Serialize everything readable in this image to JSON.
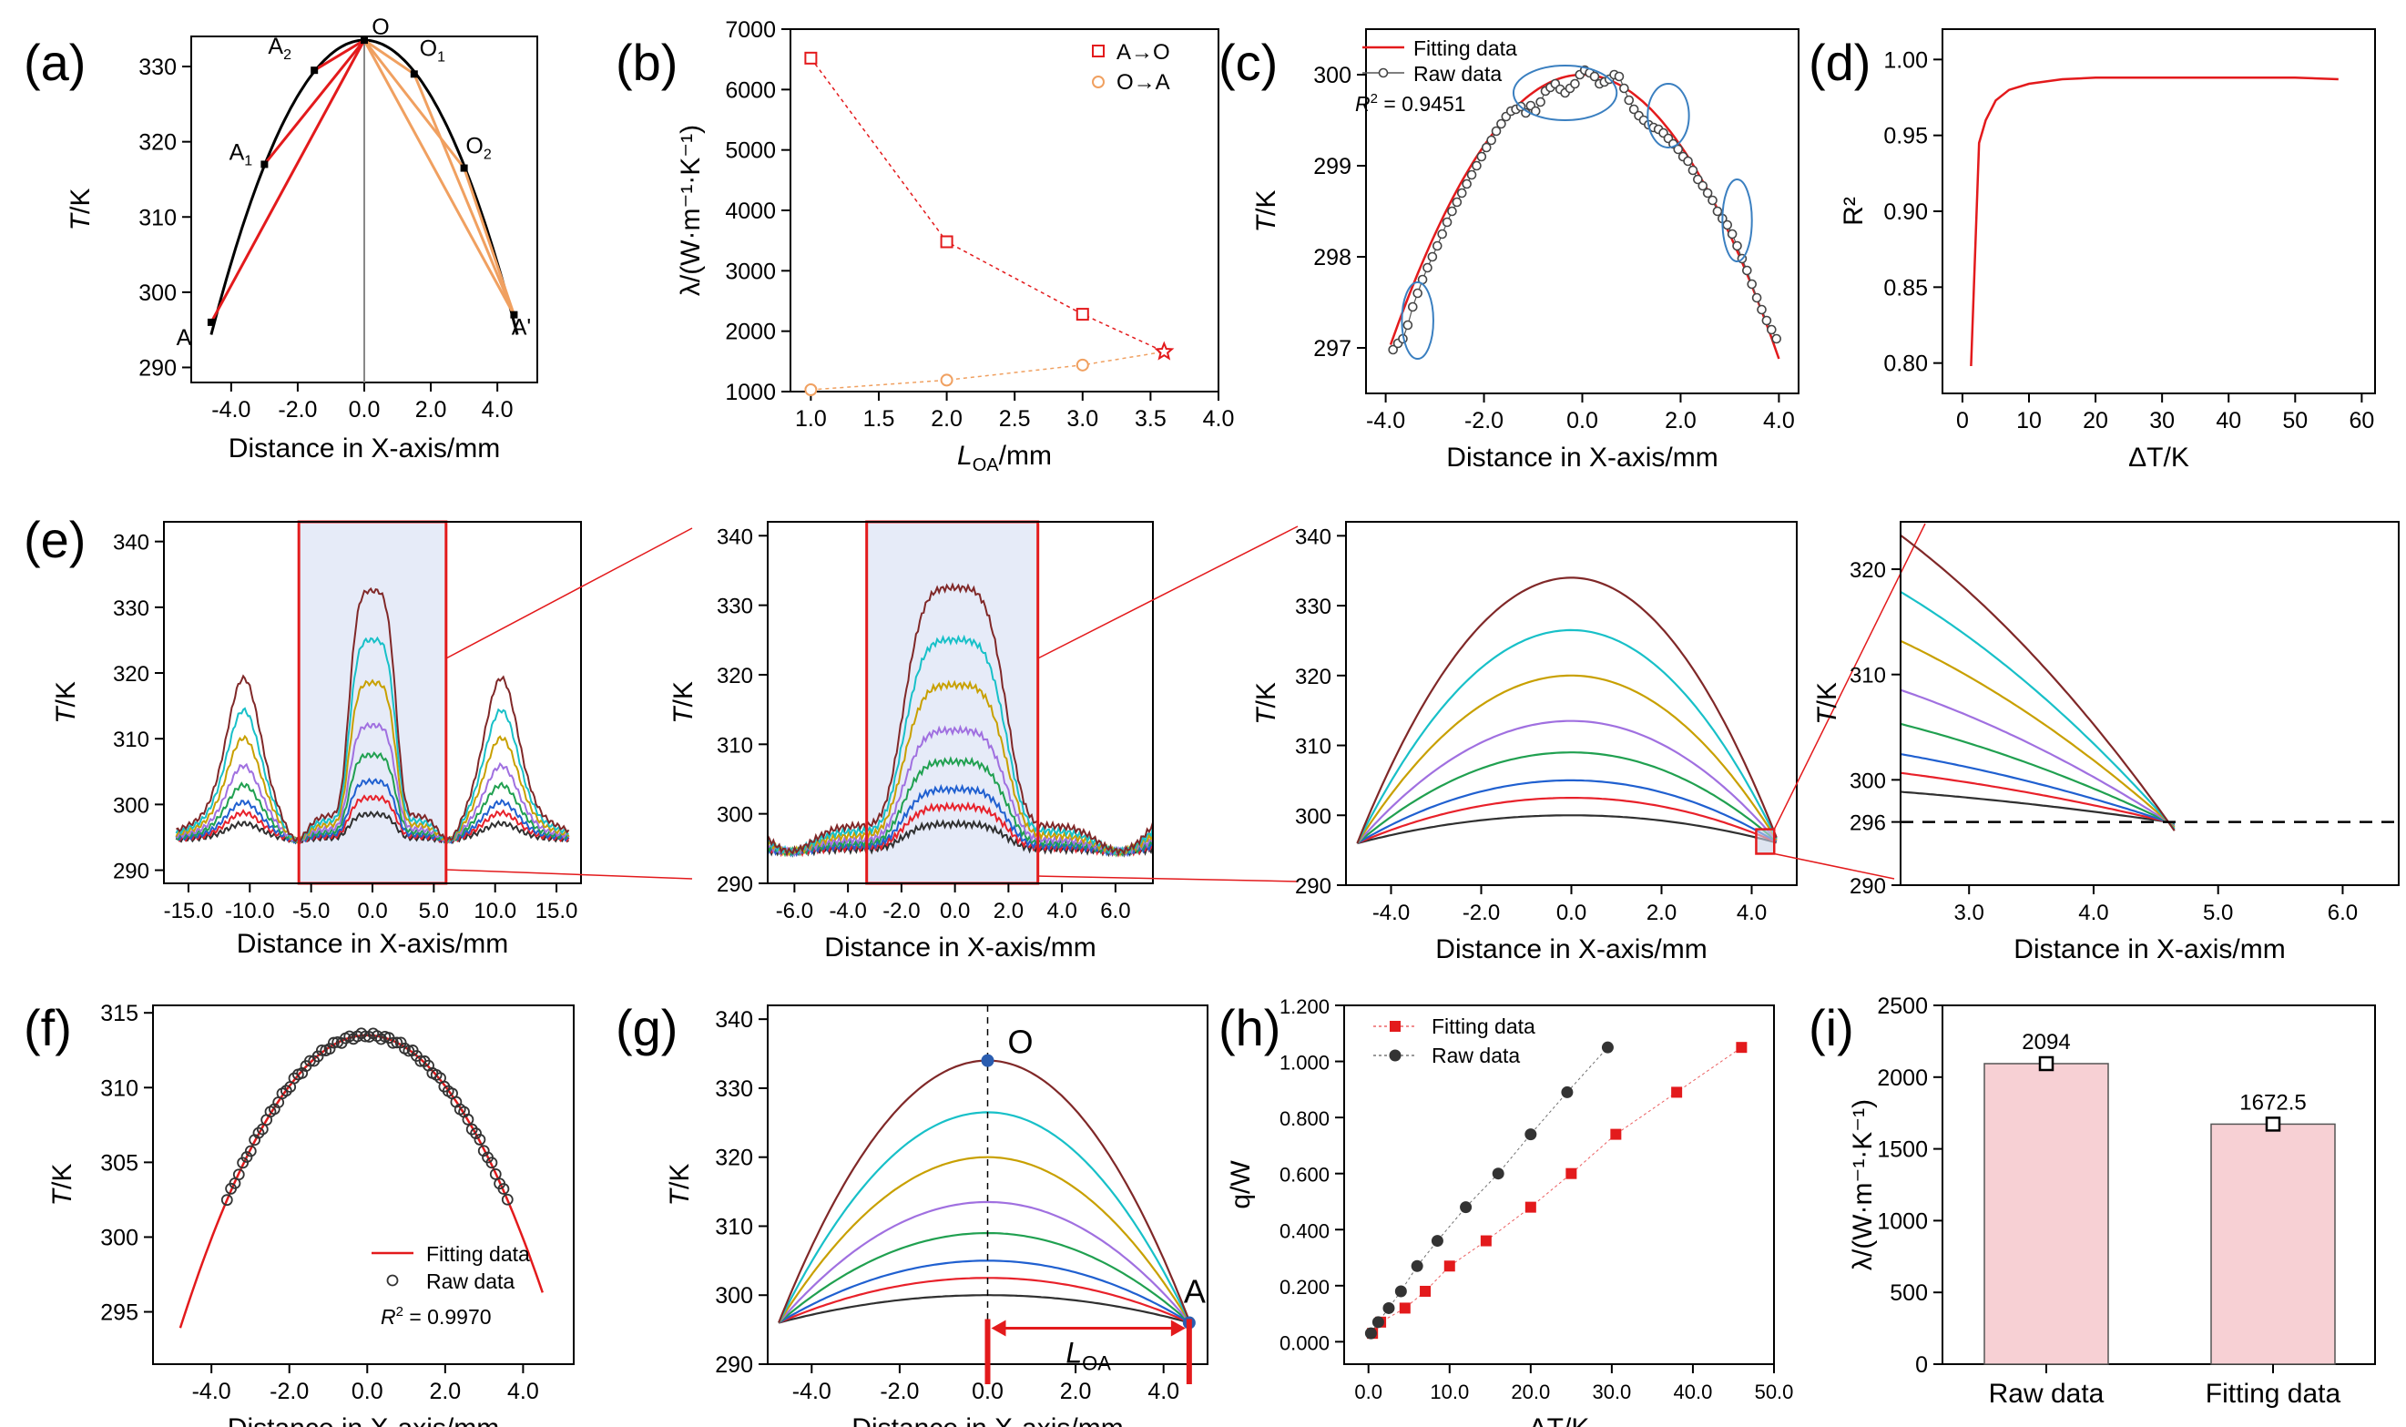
{
  "figure": {
    "colors": {
      "red": "#e31a1c",
      "orange": "#f0a060",
      "black": "#000000",
      "gray": "#888888",
      "palette": [
        "#303030",
        "#e8212a",
        "#2060d0",
        "#20a050",
        "#a070e0",
        "#c8a000",
        "#18c0c8",
        "#802828"
      ],
      "panel_fill": "#e6ebf8",
      "bar_fill": "#f7d0d4",
      "point_blue": "#2a5db0"
    },
    "panel_letters": {
      "a": "(a)",
      "b": "(b)",
      "c": "(c)",
      "d": "(d)",
      "e": "(e)",
      "f": "(f)",
      "g": "(g)",
      "h": "(h)",
      "i": "(i)"
    }
  },
  "chart_data": [
    {
      "id": "a",
      "type": "line",
      "title": "",
      "xlabel": "Distance in X-axis/mm",
      "ylabel": "T/K",
      "xlim": [
        -5.2,
        5.2
      ],
      "ylim": [
        288,
        334
      ],
      "x_ticks": [
        "-4.0",
        "-2.0",
        "0.0",
        "2.0",
        "4.0"
      ],
      "x_tick_values": [
        -4,
        -2,
        0,
        2,
        4
      ],
      "y_ticks": [
        "290",
        "300",
        "310",
        "320",
        "330"
      ],
      "y_tick_values": [
        290,
        300,
        310,
        320,
        330
      ],
      "curve": {
        "peak_x": 0,
        "peak_y": 333.5,
        "k": 1.85,
        "x_from": -4.6,
        "x_to": 4.6
      },
      "points": [
        {
          "label": "O",
          "x": 0.0,
          "y": 333.5
        },
        {
          "label": "A",
          "x": -4.6,
          "y": 296.0
        },
        {
          "label": "A1",
          "x": -3.0,
          "y": 317.0
        },
        {
          "label": "A2",
          "x": -1.5,
          "y": 329.5
        },
        {
          "label": "O1",
          "x": 1.5,
          "y": 329.0
        },
        {
          "label": "O2",
          "x": 3.0,
          "y": 316.5
        },
        {
          "label": "A'",
          "x": 4.5,
          "y": 297.0
        }
      ],
      "annotations": [
        {
          "text": "O",
          "sub": ""
        },
        {
          "text": "A",
          "sub": ""
        },
        {
          "text": "A",
          "sub": "1"
        },
        {
          "text": "A",
          "sub": "2"
        },
        {
          "text": "O",
          "sub": "1"
        },
        {
          "text": "O",
          "sub": "2"
        },
        {
          "text": "A'",
          "sub": ""
        }
      ]
    },
    {
      "id": "b",
      "type": "scatter",
      "xlabel": "L",
      "xlabel_sub": "OA",
      "xlabel_unit": "/mm",
      "ylabel": "λ/(W·m⁻¹·K⁻¹)",
      "xlim": [
        0.85,
        4.0
      ],
      "ylim": [
        1000,
        7000
      ],
      "x_ticks": [
        "1.0",
        "1.5",
        "2.0",
        "2.5",
        "3.0",
        "3.5",
        "4.0"
      ],
      "x_tick_values": [
        1.0,
        1.5,
        2.0,
        2.5,
        3.0,
        3.5,
        4.0
      ],
      "y_ticks": [
        "1000",
        "2000",
        "3000",
        "4000",
        "5000",
        "6000",
        "7000"
      ],
      "y_tick_values": [
        1000,
        2000,
        3000,
        4000,
        5000,
        6000,
        7000
      ],
      "series": [
        {
          "name": "A→O",
          "x": [
            1.0,
            2.0,
            3.0,
            3.6
          ],
          "y": [
            6520,
            3480,
            2280,
            1660
          ]
        },
        {
          "name": "O→A",
          "x": [
            1.0,
            2.0,
            3.0,
            3.6
          ],
          "y": [
            1030,
            1190,
            1440,
            1660
          ]
        }
      ],
      "intersection": {
        "x": 3.6,
        "y": 1660
      }
    },
    {
      "id": "c",
      "type": "scatter",
      "xlabel": "Distance in X-axis/mm",
      "ylabel": "T/K",
      "xlim": [
        -4.4,
        4.4
      ],
      "ylim": [
        296.5,
        300.5
      ],
      "x_ticks": [
        "-4.0",
        "-2.0",
        "0.0",
        "2.0",
        "4.0"
      ],
      "x_tick_values": [
        -4,
        -2,
        0,
        2,
        4
      ],
      "y_ticks": [
        "297",
        "298",
        "299",
        "300"
      ],
      "y_tick_values": [
        297,
        298,
        299,
        300
      ],
      "legend": [
        "Fitting data",
        "Raw data"
      ],
      "r2_label": "R",
      "r2_text": " = 0.9451",
      "fit": {
        "peak_y": 300.0,
        "k": 0.195,
        "x_from": -3.9,
        "x_to": 4.0
      },
      "raw": [
        [
          -3.85,
          296.98
        ],
        [
          -3.75,
          297.05
        ],
        [
          -3.65,
          297.1
        ],
        [
          -3.55,
          297.25
        ],
        [
          -3.45,
          297.45
        ],
        [
          -3.35,
          297.6
        ],
        [
          -3.25,
          297.75
        ],
        [
          -3.15,
          297.88
        ],
        [
          -3.05,
          298.0
        ],
        [
          -2.95,
          298.12
        ],
        [
          -2.85,
          298.25
        ],
        [
          -2.75,
          298.38
        ],
        [
          -2.65,
          298.5
        ],
        [
          -2.55,
          298.6
        ],
        [
          -2.45,
          298.7
        ],
        [
          -2.35,
          298.8
        ],
        [
          -2.25,
          298.9
        ],
        [
          -2.15,
          299.0
        ],
        [
          -2.05,
          299.1
        ],
        [
          -1.95,
          299.2
        ],
        [
          -1.85,
          299.28
        ],
        [
          -1.75,
          299.38
        ],
        [
          -1.65,
          299.46
        ],
        [
          -1.55,
          299.54
        ],
        [
          -1.45,
          299.6
        ],
        [
          -1.35,
          299.62
        ],
        [
          -1.25,
          299.65
        ],
        [
          -1.15,
          299.58
        ],
        [
          -1.05,
          299.66
        ],
        [
          -0.95,
          299.6
        ],
        [
          -0.85,
          299.7
        ],
        [
          -0.75,
          299.82
        ],
        [
          -0.65,
          299.86
        ],
        [
          -0.55,
          299.9
        ],
        [
          -0.45,
          299.84
        ],
        [
          -0.35,
          299.8
        ],
        [
          -0.25,
          299.85
        ],
        [
          -0.15,
          299.9
        ],
        [
          -0.05,
          300.0
        ],
        [
          0.05,
          300.05
        ],
        [
          0.15,
          300.02
        ],
        [
          0.25,
          299.98
        ],
        [
          0.35,
          299.9
        ],
        [
          0.45,
          299.92
        ],
        [
          0.55,
          299.95
        ],
        [
          0.65,
          300.0
        ],
        [
          0.75,
          299.98
        ],
        [
          0.85,
          299.85
        ],
        [
          0.95,
          299.72
        ],
        [
          1.05,
          299.62
        ],
        [
          1.15,
          299.55
        ],
        [
          1.25,
          299.5
        ],
        [
          1.35,
          299.45
        ],
        [
          1.45,
          299.42
        ],
        [
          1.55,
          299.4
        ],
        [
          1.65,
          299.36
        ],
        [
          1.75,
          299.3
        ],
        [
          1.85,
          299.24
        ],
        [
          1.95,
          299.18
        ],
        [
          2.05,
          299.1
        ],
        [
          2.15,
          299.05
        ],
        [
          2.25,
          298.95
        ],
        [
          2.35,
          298.85
        ],
        [
          2.45,
          298.78
        ],
        [
          2.55,
          298.7
        ],
        [
          2.65,
          298.62
        ],
        [
          2.75,
          298.5
        ],
        [
          2.85,
          298.42
        ],
        [
          2.95,
          298.35
        ],
        [
          3.05,
          298.25
        ],
        [
          3.15,
          298.12
        ],
        [
          3.25,
          297.98
        ],
        [
          3.35,
          297.85
        ],
        [
          3.45,
          297.7
        ],
        [
          3.55,
          297.55
        ],
        [
          3.65,
          297.42
        ],
        [
          3.75,
          297.3
        ],
        [
          3.85,
          297.2
        ],
        [
          3.95,
          297.1
        ]
      ],
      "ellipses": [
        {
          "cx": -3.35,
          "cy": 297.3,
          "rx": 0.32,
          "ry": 0.42
        },
        {
          "cx": -0.35,
          "cy": 299.8,
          "rx": 1.05,
          "ry": 0.3
        },
        {
          "cx": 1.75,
          "cy": 299.55,
          "rx": 0.42,
          "ry": 0.35
        },
        {
          "cx": 3.15,
          "cy": 298.4,
          "rx": 0.3,
          "ry": 0.45
        }
      ]
    },
    {
      "id": "d",
      "type": "line",
      "xlabel": "ΔT/K",
      "ylabel": "R²",
      "xlim": [
        -3,
        62
      ],
      "ylim": [
        0.78,
        1.02
      ],
      "x_ticks": [
        "0",
        "10",
        "20",
        "30",
        "40",
        "50",
        "60"
      ],
      "x_tick_values": [
        0,
        10,
        20,
        30,
        40,
        50,
        60
      ],
      "y_ticks": [
        "0.80",
        "0.85",
        "0.90",
        "0.95",
        "1.00"
      ],
      "y_tick_values": [
        0.8,
        0.85,
        0.9,
        0.95,
        1.0
      ],
      "x": [
        1.3,
        2.5,
        3.5,
        5.0,
        7.0,
        10.0,
        15.0,
        20.0,
        30.0,
        40.0,
        50.0,
        56.5
      ],
      "y": [
        0.798,
        0.945,
        0.96,
        0.973,
        0.98,
        0.984,
        0.987,
        0.988,
        0.988,
        0.988,
        0.988,
        0.987
      ]
    },
    {
      "id": "e1",
      "type": "line",
      "xlabel": "Distance in X-axis/mm",
      "ylabel": "T/K",
      "xlim": [
        -17,
        17
      ],
      "ylim": [
        288,
        343
      ],
      "x_ticks": [
        "-15.0",
        "-10.0",
        "-5.0",
        "0.0",
        "5.0",
        "10.0",
        "15.0"
      ],
      "x_tick_values": [
        -15,
        -10,
        -5,
        0,
        5,
        10,
        15
      ],
      "y_ticks": [
        "290",
        "300",
        "310",
        "320",
        "330",
        "340"
      ],
      "y_tick_values": [
        290,
        300,
        310,
        320,
        330,
        340
      ],
      "highlight": {
        "x_from": -6.0,
        "x_to": 6.0
      },
      "series_peaks": [
        300.0,
        302.5,
        305.0,
        309.0,
        313.5,
        320.0,
        326.5,
        334.0
      ]
    },
    {
      "id": "e2",
      "type": "line",
      "xlabel": "Distance in X-axis/mm",
      "ylabel": "T/K",
      "xlim": [
        -7,
        7.4
      ],
      "ylim": [
        290,
        342
      ],
      "x_ticks": [
        "-6.0",
        "-4.0",
        "-2.0",
        "0.0",
        "2.0",
        "4.0",
        "6.0"
      ],
      "x_tick_values": [
        -6,
        -4,
        -2,
        0,
        2,
        4,
        6
      ],
      "y_ticks": [
        "290",
        "300",
        "310",
        "320",
        "330",
        "340"
      ],
      "y_tick_values": [
        290,
        300,
        310,
        320,
        330,
        340
      ],
      "highlight": {
        "x_from": -3.3,
        "x_to": 3.1
      },
      "series_peaks": [
        300.0,
        302.5,
        305.0,
        309.0,
        313.5,
        320.0,
        326.5,
        334.0
      ]
    },
    {
      "id": "e3",
      "type": "line",
      "xlabel": "Distance in X-axis/mm",
      "ylabel": "T/K",
      "xlim": [
        -5.0,
        5.0
      ],
      "ylim": [
        290,
        342
      ],
      "x_ticks": [
        "-4.0",
        "-2.0",
        "0.0",
        "2.0",
        "4.0"
      ],
      "x_tick_values": [
        -4,
        -2,
        0,
        2,
        4
      ],
      "y_ticks": [
        "290",
        "300",
        "310",
        "320",
        "330",
        "340"
      ],
      "y_tick_values": [
        290,
        300,
        310,
        320,
        330,
        340
      ],
      "zoom_box": {
        "x_from": 4.1,
        "x_to": 4.5,
        "y_from": 294.5,
        "y_to": 298.0
      },
      "series_peaks": [
        300.0,
        302.5,
        305.0,
        309.0,
        313.5,
        320.0,
        326.5,
        334.0
      ]
    },
    {
      "id": "e4",
      "type": "line",
      "xlabel": "Distance in X-axis/mm",
      "ylabel": "T/K",
      "xlim": [
        2.45,
        6.45
      ],
      "ylim": [
        290,
        324.5
      ],
      "x_ticks": [
        "3.0",
        "4.0",
        "5.0",
        "6.0"
      ],
      "x_tick_values": [
        3,
        4,
        5,
        6
      ],
      "y_ticks": [
        "290",
        "296",
        "300",
        "310",
        "320"
      ],
      "y_tick_values": [
        290,
        296,
        300,
        310,
        320
      ],
      "reference_line": 296,
      "converge_x": 4.6,
      "series_peaks": [
        300.0,
        302.5,
        305.0,
        309.0,
        313.5,
        320.0,
        326.5,
        334.0
      ]
    },
    {
      "id": "f",
      "type": "scatter",
      "xlabel": "Distance in X-axis/mm",
      "ylabel": "T/K",
      "xlim": [
        -5.5,
        5.3
      ],
      "ylim": [
        291.5,
        315.5
      ],
      "x_ticks": [
        "-4.0",
        "-2.0",
        "0.0",
        "2.0",
        "4.0"
      ],
      "x_tick_values": [
        -4,
        -2,
        0,
        2,
        4
      ],
      "y_ticks": [
        "295",
        "300",
        "305",
        "310",
        "315"
      ],
      "y_tick_values": [
        295,
        300,
        305,
        310,
        315
      ],
      "legend": [
        "Fitting data",
        "Raw data"
      ],
      "r2_label": "R",
      "r2_text": " = 0.9970",
      "fit": {
        "peak_y": 313.5,
        "k": 0.85,
        "x_from": -4.8,
        "x_to": 4.5
      },
      "raw_range": {
        "x_from": -3.6,
        "x_to": 3.6,
        "n": 72
      }
    },
    {
      "id": "g",
      "type": "line",
      "xlabel": "Distance in X-axis/mm",
      "ylabel": "T/K",
      "xlim": [
        -5.0,
        5.0
      ],
      "ylim": [
        290,
        342
      ],
      "x_ticks": [
        "-4.0",
        "-2.0",
        "0.0",
        "2.0",
        "4.0"
      ],
      "x_tick_values": [
        -4,
        -2,
        0,
        2,
        4
      ],
      "y_ticks": [
        "290",
        "300",
        "310",
        "320",
        "330",
        "340"
      ],
      "y_tick_values": [
        290,
        300,
        310,
        320,
        330,
        340
      ],
      "series_peaks": [
        300.0,
        302.5,
        305.0,
        309.0,
        313.5,
        320.0,
        326.5,
        334.0
      ],
      "point_O": {
        "label": "O",
        "x": 0.0,
        "y": 334.0
      },
      "point_A": {
        "label": "A",
        "x": 4.5,
        "y": 296.0
      },
      "span_label": "L",
      "span_sub": "OA"
    },
    {
      "id": "h",
      "type": "scatter",
      "xlabel": "ΔT/K",
      "ylabel": "q/W",
      "xlim": [
        -3,
        50
      ],
      "ylim": [
        -0.08,
        1.2
      ],
      "x_ticks": [
        "0.0",
        "10.0",
        "20.0",
        "30.0",
        "40.0",
        "50.0"
      ],
      "x_tick_values": [
        0,
        10,
        20,
        30,
        40,
        50
      ],
      "y_ticks": [
        "0.000",
        "0.200",
        "0.400",
        "0.600",
        "0.800",
        "1.000",
        "1.200"
      ],
      "y_tick_values": [
        0,
        0.2,
        0.4,
        0.6,
        0.8,
        1.0,
        1.2
      ],
      "series": [
        {
          "name": "Fitting data",
          "x": [
            0.5,
            1.5,
            4.5,
            7.0,
            10.0,
            14.5,
            20.0,
            25.0,
            30.5,
            38.0,
            46.0
          ],
          "y": [
            0.03,
            0.07,
            0.12,
            0.18,
            0.27,
            0.36,
            0.48,
            0.6,
            0.74,
            0.89,
            1.05
          ]
        },
        {
          "name": "Raw data",
          "x": [
            0.3,
            1.2,
            2.5,
            4.0,
            6.0,
            8.5,
            12.0,
            16.0,
            20.0,
            24.5,
            29.5
          ],
          "y": [
            0.03,
            0.07,
            0.12,
            0.18,
            0.27,
            0.36,
            0.48,
            0.6,
            0.74,
            0.89,
            1.05
          ]
        }
      ]
    },
    {
      "id": "i",
      "type": "bar",
      "xlabel": "",
      "ylabel": "λ/(W·m⁻¹·K⁻¹)",
      "ylim": [
        0,
        2500
      ],
      "y_ticks": [
        "0",
        "500",
        "1000",
        "1500",
        "2000",
        "2500"
      ],
      "y_tick_values": [
        0,
        500,
        1000,
        1500,
        2000,
        2500
      ],
      "categories": [
        "Raw data",
        "Fitting data"
      ],
      "values": [
        2094,
        1672.5
      ],
      "value_labels": [
        "2094",
        "1672.5"
      ]
    }
  ]
}
